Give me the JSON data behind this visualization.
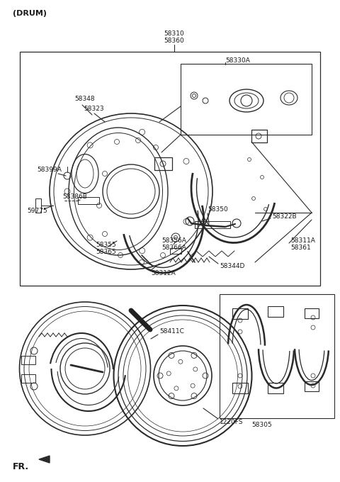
{
  "bg_color": "#ffffff",
  "line_color": "#2a2a2a",
  "text_color": "#1a1a1a",
  "font_size": 6.5,
  "figsize": [
    4.8,
    6.8
  ],
  "dpi": 100,
  "labels": {
    "drum": "(DRUM)",
    "top_part1": "58310",
    "top_part2": "58360",
    "part_330A": "58330A",
    "part_348": "58348",
    "part_323": "58323",
    "part_399A": "58399A",
    "part_386B": "58386B",
    "part_9775": "59775",
    "part_355": "58355",
    "part_365": "58365",
    "part_350": "58350",
    "part_356A": "58356A",
    "part_366A": "58366A",
    "part_312A": "58312A",
    "part_344D": "58344D",
    "part_322B": "58322B",
    "part_311A": "58311A",
    "part_361": "58361",
    "part_411C": "58411C",
    "part_1220FS": "1220FS",
    "part_305": "58305",
    "fr_label": "FR."
  }
}
